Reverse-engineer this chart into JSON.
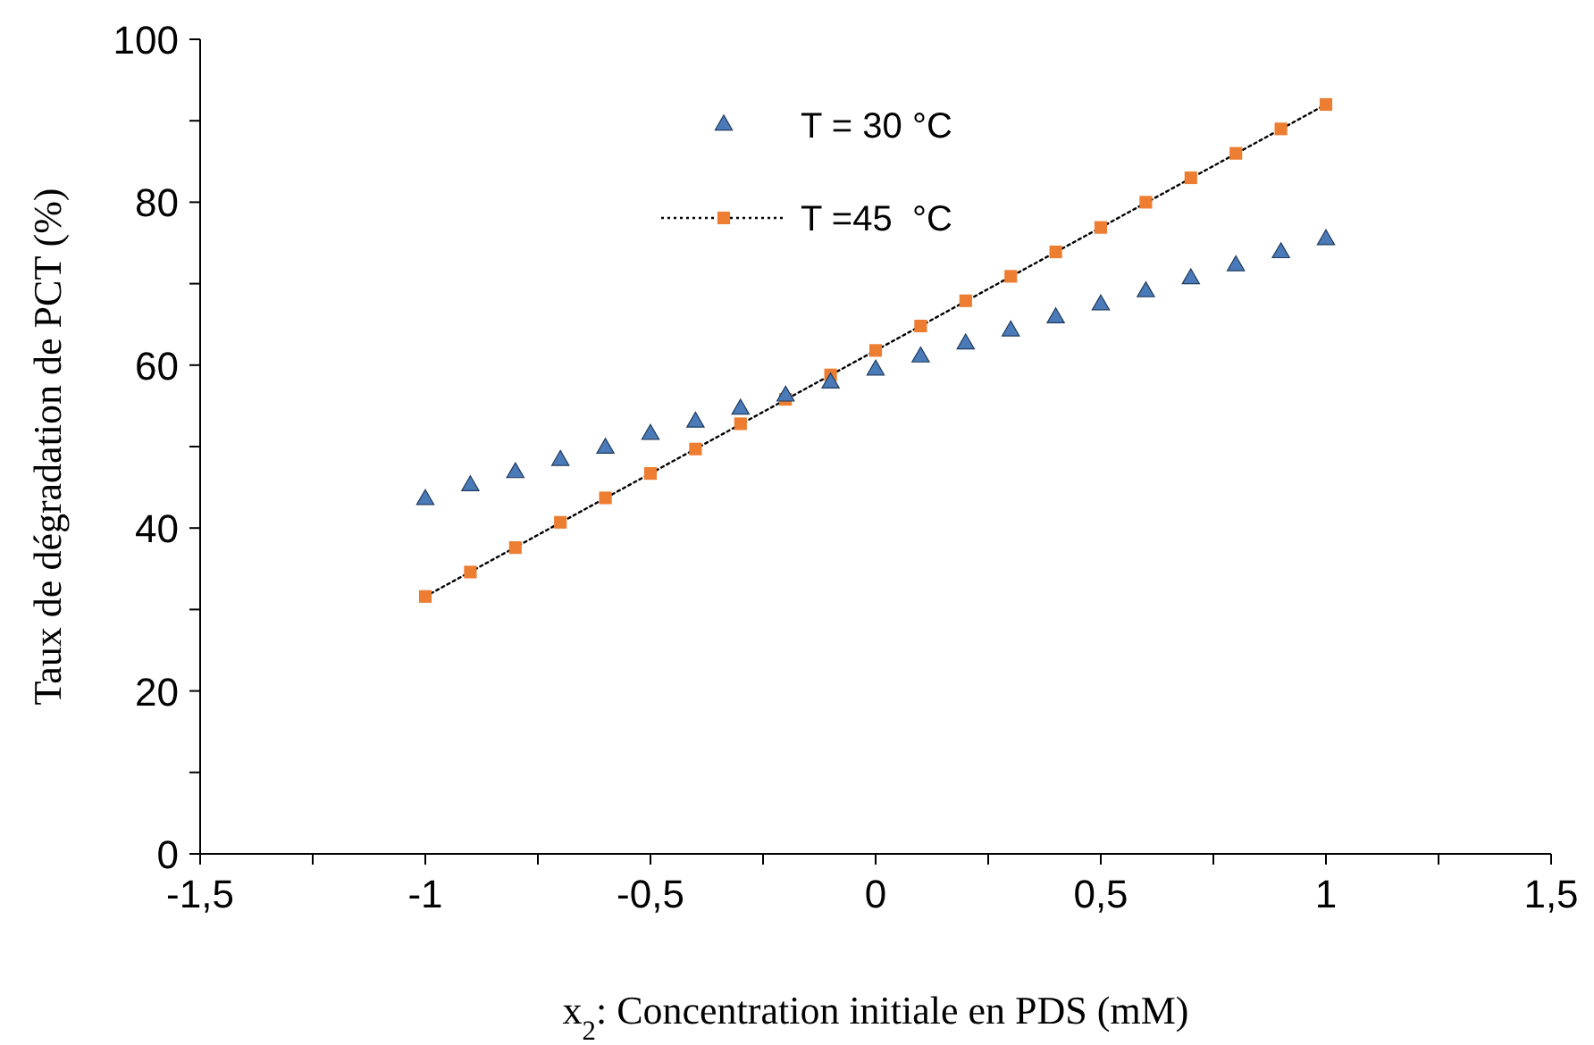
{
  "chart_data": {
    "type": "scatter",
    "xlabel": "x$_{2}$: Concentration initiale en PDS (mM)",
    "ylabel": "Taux de dégradation de PCT (%)",
    "x": [
      -1,
      -0.9,
      -0.8,
      -0.7,
      -0.6,
      -0.5,
      -0.4,
      -0.3,
      -0.2,
      -0.1,
      0,
      0.1,
      0.2,
      0.3,
      0.4,
      0.5,
      0.6,
      0.7,
      0.8,
      0.9,
      1
    ],
    "series": [
      {
        "name": "T = 30 °C",
        "color": "#4a7ab8",
        "marker": "triangle",
        "line_style": "none",
        "values": [
          43.5,
          45.2,
          46.8,
          48.3,
          49.8,
          51.5,
          53.0,
          54.6,
          56.2,
          57.8,
          59.4,
          61.0,
          62.6,
          64.2,
          65.8,
          67.4,
          69.0,
          70.6,
          72.2,
          73.8,
          75.4
        ]
      },
      {
        "name": "T =45  °C",
        "color": "#ed7d31",
        "marker": "square",
        "line_style": "dotted",
        "values": [
          31.6,
          34.6,
          37.6,
          40.7,
          43.7,
          46.7,
          49.7,
          52.8,
          55.8,
          58.8,
          61.8,
          64.8,
          67.9,
          70.9,
          73.9,
          76.9,
          80.0,
          83.0,
          86.0,
          89.0,
          92.0
        ]
      },
      {
        "type": "line",
        "color": "#000000",
        "marker": "none",
        "line_style": "dotted",
        "x": [
          -1,
          1
        ],
        "values": [
          31.6,
          92.0
        ]
      }
    ],
    "xlim": [
      -1.5,
      1.5
    ],
    "ylim": [
      0,
      100
    ],
    "xticks": [
      {
        "value": -1.5,
        "label": "-1,5"
      },
      {
        "value": -1.25,
        "label": null
      },
      -1,
      {
        "value": -0.75,
        "label": null
      },
      {
        "value": -0.5,
        "label": "-0,5"
      },
      {
        "value": -0.25,
        "label": null
      },
      0,
      {
        "value": 0.25,
        "label": null
      },
      {
        "value": 0.5,
        "label": "0,5"
      },
      {
        "value": 0.75,
        "label": null
      },
      1,
      {
        "value": 1.25,
        "label": null
      },
      {
        "value": 1.5,
        "label": "1,5"
      }
    ],
    "yticks": [
      0,
      {
        "value": 10,
        "label": null
      },
      20,
      {
        "value": 30,
        "label": null
      },
      40,
      {
        "value": 50,
        "label": null
      },
      60,
      {
        "value": 70,
        "label": null
      },
      80,
      {
        "value": 90,
        "label": null
      },
      100
    ],
    "grid": false,
    "legend": "top"
  }
}
